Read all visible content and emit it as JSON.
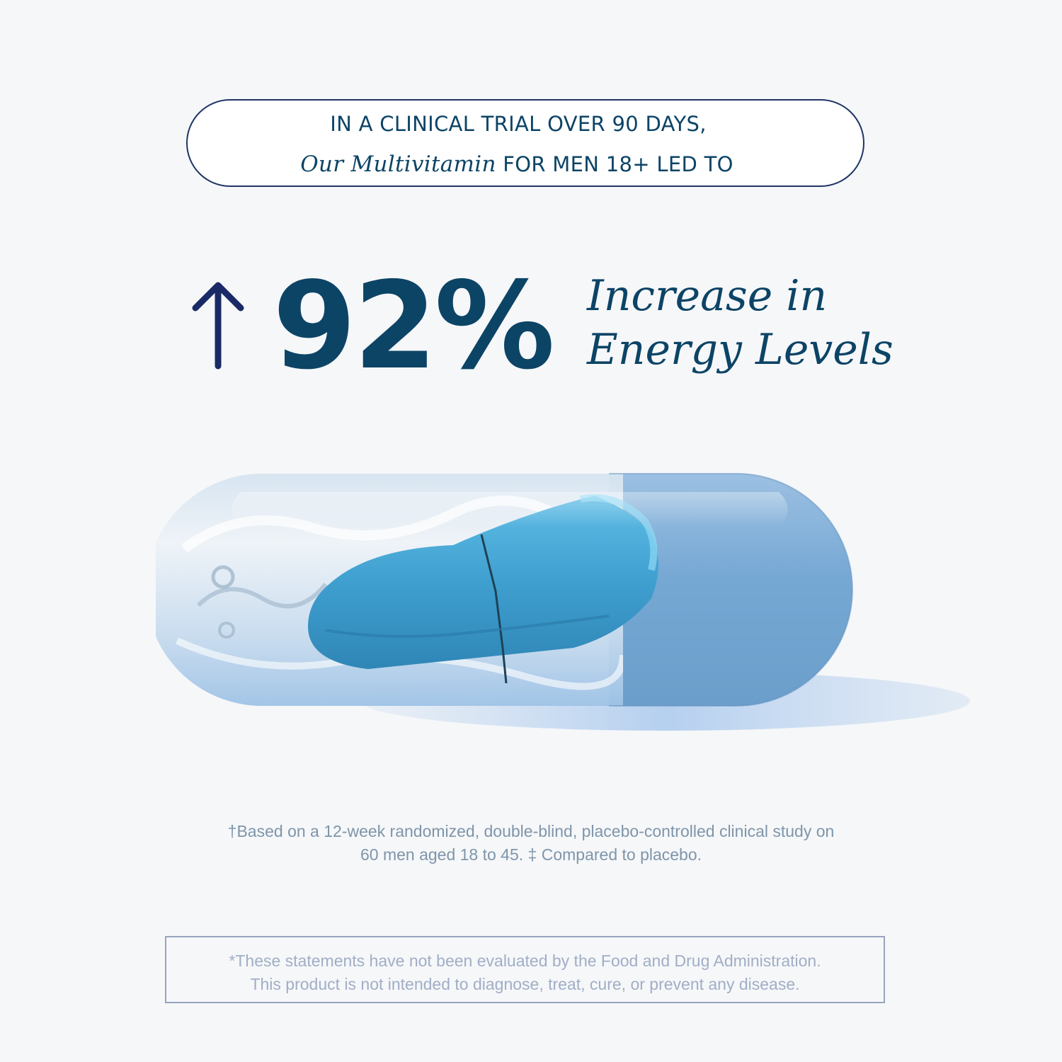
{
  "headline": {
    "line1": "IN A CLINICAL TRIAL OVER 90 DAYS,",
    "line2_italic": "Our Multivitamin",
    "line2_rest": " FOR MEN 18+ LED TO"
  },
  "stat": {
    "icon": "arrow-up-icon",
    "value": "92%",
    "label_line1": "Increase in",
    "label_line2": "Energy Levels"
  },
  "image": {
    "subject": "capsule-image"
  },
  "footnote": {
    "line1": "†Based on a 12-week randomized, double-blind, placebo-controlled clinical study on",
    "line2": "60 men aged 18 to 45. ‡ Compared to placebo."
  },
  "disclaimer": {
    "line1": "*These statements have not been evaluated by the Food and Drug Administration.",
    "line2": "This product is not intended to diagnose, treat, cure, or prevent any disease."
  },
  "colors": {
    "background": "#f6f7f9",
    "primary_text": "#0c4466",
    "arrow": "#1a2a66",
    "muted_text": "#7e95aa",
    "disclaimer_border": "#98a4be",
    "capsule_blue": "#7fb0d8",
    "capsule_core": "#3d9fd1"
  }
}
